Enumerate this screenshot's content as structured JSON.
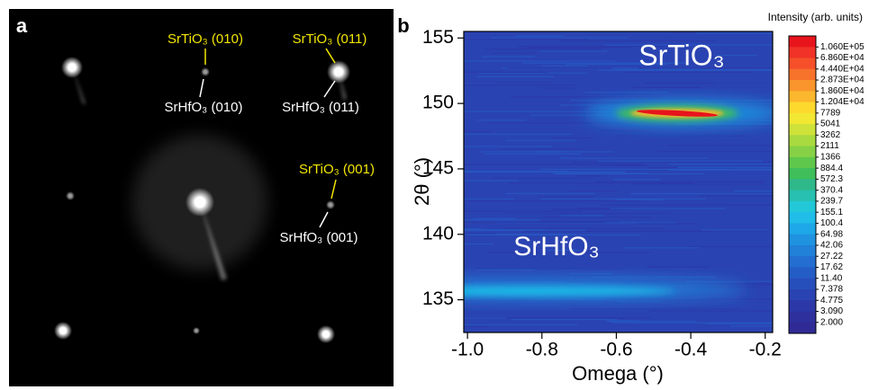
{
  "panel_a": {
    "label": "a",
    "spot_labels": [
      {
        "top": "SrTiO₃ (010)",
        "bottom": "SrHfO₃ (010)"
      },
      {
        "top": "SrTiO₃ (011)",
        "bottom": "SrHfO₃ (011)"
      },
      {
        "top": "SrTiO₃ (001)",
        "bottom": "SrHfO₃ (001)"
      }
    ]
  },
  "chart_data": {
    "type": "heatmap",
    "panel_label": "b",
    "xlabel": "Omega (°)",
    "ylabel": "2θ (°)",
    "annotations": [
      "SrTiO₃",
      "SrHfO₃"
    ],
    "xlim": [
      -1.01,
      -0.18
    ],
    "xticks": [
      {
        "value": -1,
        "label": "-1.0"
      },
      -0.8,
      -0.6,
      -0.4,
      -0.2
    ],
    "ylim": [
      132.5,
      155.5
    ],
    "yticks": [
      135,
      140,
      145,
      150,
      155
    ],
    "colorbar": {
      "title": "Intensity (arb. units)",
      "levels": [
        {
          "value": 106000,
          "label": "1.060E+05"
        },
        {
          "value": 68600,
          "label": "6.860E+04"
        },
        {
          "value": 44400,
          "label": "4.440E+04"
        },
        {
          "value": 28730,
          "label": "2.873E+04"
        },
        {
          "value": 18600,
          "label": "1.860E+04"
        },
        {
          "value": 12040,
          "label": "1.204E+04"
        },
        7789,
        5041,
        3262,
        2111,
        1366,
        884.4,
        572.3,
        370.4,
        239.7,
        155.1,
        100.4,
        64.98,
        42.06,
        27.22,
        17.62,
        {
          "value": 11.4,
          "label": "11.40"
        },
        7.378,
        4.775,
        {
          "value": 3.09,
          "label": "3.090"
        },
        {
          "value": 2,
          "label": "2.000"
        }
      ],
      "colors": [
        "#e8141c",
        "#f03228",
        "#f5502a",
        "#f7722b",
        "#f9952c",
        "#fbb72d",
        "#fdd92e",
        "#f2e733",
        "#cfe23a",
        "#a9da3f",
        "#86d146",
        "#5fc84c",
        "#3fbf5a",
        "#2fb88a",
        "#28c0b0",
        "#22c8d8",
        "#1fbde8",
        "#1ea8e8",
        "#1f93e0",
        "#2180d8",
        "#236ed0",
        "#255dc6",
        "#274fbc",
        "#2a43b2",
        "#2c38a8",
        "#2e309e",
        "#302a96"
      ]
    }
  }
}
